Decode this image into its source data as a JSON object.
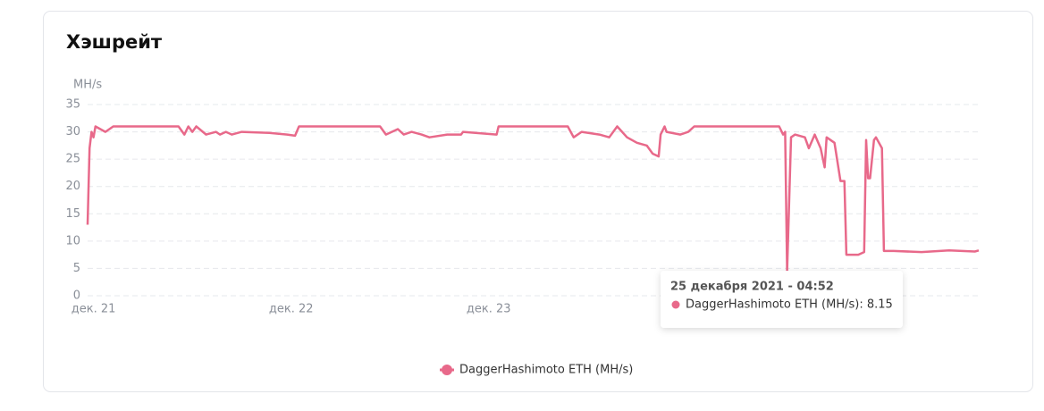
{
  "chart_data": {
    "type": "line",
    "title": "Хэшрейт",
    "y_label": "MH/s",
    "x": [
      20.97,
      20.98,
      20.99,
      21.0,
      21.01,
      21.06,
      21.1,
      21.43,
      21.46,
      21.48,
      21.5,
      21.52,
      21.57,
      21.62,
      21.64,
      21.67,
      21.7,
      21.75,
      21.89,
      21.98,
      22.02,
      22.04,
      22.45,
      22.48,
      22.54,
      22.57,
      22.61,
      22.66,
      22.7,
      22.79,
      22.86,
      22.87,
      23.04,
      23.05,
      23.4,
      23.43,
      23.47,
      23.56,
      23.61,
      23.65,
      23.7,
      23.75,
      23.8,
      23.83,
      23.86,
      23.87,
      23.89,
      23.9,
      23.97,
      24.01,
      24.04,
      24.47,
      24.49,
      24.5,
      24.51,
      24.53,
      24.55,
      24.6,
      24.62,
      24.65,
      24.68,
      24.7,
      24.71,
      24.75,
      24.78,
      24.8,
      24.81,
      24.87,
      24.9,
      24.91,
      24.92,
      24.93,
      24.95,
      24.96,
      24.99,
      25.0,
      25.05,
      25.19,
      25.33,
      25.46,
      25.48
    ],
    "series": [
      {
        "name": "DaggerHashimoto ETH (MH/s)",
        "color": "#e8698a",
        "values": [
          13,
          27,
          30,
          29,
          31,
          30,
          31,
          31,
          29.5,
          31,
          30,
          31,
          29.5,
          30,
          29.5,
          30,
          29.5,
          30,
          29.8,
          29.5,
          29.3,
          31,
          31,
          29.5,
          30.5,
          29.5,
          30,
          29.5,
          29,
          29.5,
          29.5,
          30,
          29.5,
          31,
          31,
          29,
          30,
          29.5,
          29,
          31,
          29,
          28,
          27.5,
          26,
          25.5,
          29.5,
          31,
          30,
          29.5,
          30,
          31,
          31,
          29.5,
          30,
          4.5,
          29,
          29.5,
          29,
          27,
          29.5,
          27,
          23.5,
          29,
          28,
          21,
          21,
          7.5,
          7.5,
          8,
          28.5,
          21.5,
          21.5,
          28.5,
          29,
          27,
          8.2,
          8.2,
          8,
          8.3,
          8.1,
          8.3
        ]
      }
    ],
    "xlim": [
      20.97,
      25.48
    ],
    "xticks": [
      {
        "value": 21,
        "label": "дек. 21"
      },
      {
        "value": 22,
        "label": "дек. 22"
      },
      {
        "value": 23,
        "label": "дек. 23"
      }
    ],
    "ylim": [
      0,
      35
    ],
    "yticks": [
      0,
      5,
      10,
      15,
      20,
      25,
      30,
      35
    ],
    "grid": true,
    "legend": "bottom",
    "tooltip": {
      "title": "25 декабря 2021 - 04:52",
      "text": "DaggerHashimoto ETH (MH/s): 8.15"
    }
  }
}
